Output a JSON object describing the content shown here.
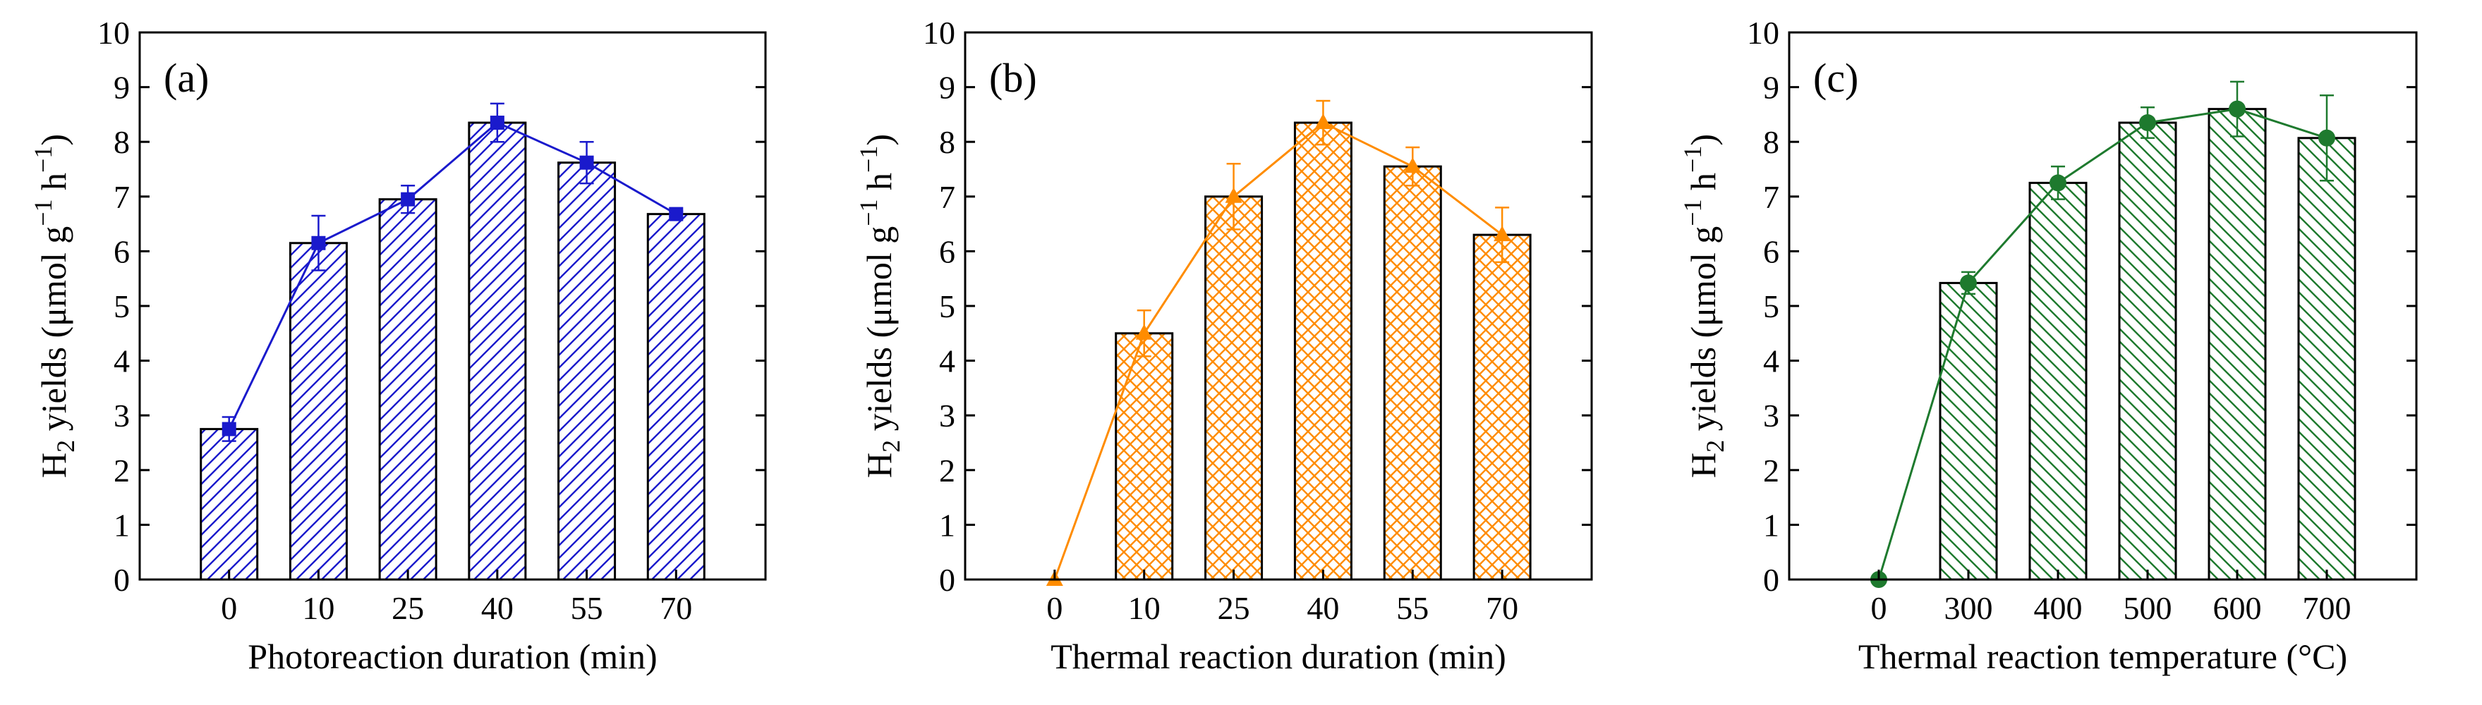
{
  "chart_data": [
    {
      "type": "bar",
      "panel_label": "(a)",
      "categories": [
        "0",
        "10",
        "25",
        "40",
        "55",
        "70"
      ],
      "values": [
        2.75,
        6.15,
        6.95,
        8.35,
        7.62,
        6.68
      ],
      "errors": [
        0.22,
        0.5,
        0.25,
        0.35,
        0.38,
        0.05
      ],
      "line_values": [
        2.75,
        6.15,
        6.95,
        8.35,
        7.62,
        6.68
      ],
      "marker": "square",
      "pattern": "diag",
      "color": "#1a1acc",
      "xlabel": "Photoreaction duration (min)",
      "ylabel": {
        "main": "H",
        "sub": "2",
        "rest": " yields (μmol g",
        "sup1": "−1",
        "mid": " h",
        "sup2": "−1",
        "end": ")"
      },
      "ylim": [
        0,
        10
      ],
      "yticks": [
        "0",
        "1",
        "2",
        "3",
        "4",
        "5",
        "6",
        "7",
        "8",
        "9",
        "10"
      ]
    },
    {
      "type": "bar",
      "panel_label": "(b)",
      "categories": [
        "0",
        "10",
        "25",
        "40",
        "55",
        "70"
      ],
      "values": [
        0,
        4.5,
        7.0,
        8.35,
        7.55,
        6.3
      ],
      "errors": [
        0,
        0.42,
        0.6,
        0.4,
        0.35,
        0.5
      ],
      "line_values": [
        0,
        4.5,
        7.0,
        8.35,
        7.55,
        6.3
      ],
      "marker": "triangle",
      "pattern": "cross",
      "color": "#ff8c00",
      "xlabel": "Thermal reaction duration (min)",
      "ylabel": {
        "main": "H",
        "sub": "2",
        "rest": " yields (μmol g",
        "sup1": "−1",
        "mid": " h",
        "sup2": "−1",
        "end": ")"
      },
      "ylim": [
        0,
        10
      ],
      "yticks": [
        "0",
        "1",
        "2",
        "3",
        "4",
        "5",
        "6",
        "7",
        "8",
        "9",
        "10"
      ]
    },
    {
      "type": "bar",
      "panel_label": "(c)",
      "categories": [
        "0",
        "300",
        "400",
        "500",
        "600",
        "700"
      ],
      "values": [
        0,
        5.42,
        7.25,
        8.35,
        8.6,
        8.07
      ],
      "errors": [
        0,
        0.2,
        0.3,
        0.28,
        0.5,
        0.78
      ],
      "line_values": [
        0,
        5.42,
        7.25,
        8.35,
        8.6,
        8.07
      ],
      "marker": "circle",
      "pattern": "anti",
      "color": "#1e7a2e",
      "xlabel": "Thermal reaction temperature (°C)",
      "ylabel": {
        "main": "H",
        "sub": "2",
        "rest": " yields (μmol g",
        "sup1": "−1",
        "mid": " h",
        "sup2": "−1",
        "end": ")"
      },
      "ylim": [
        0,
        10
      ],
      "yticks": [
        "0",
        "1",
        "2",
        "3",
        "4",
        "5",
        "6",
        "7",
        "8",
        "9",
        "10"
      ]
    }
  ]
}
